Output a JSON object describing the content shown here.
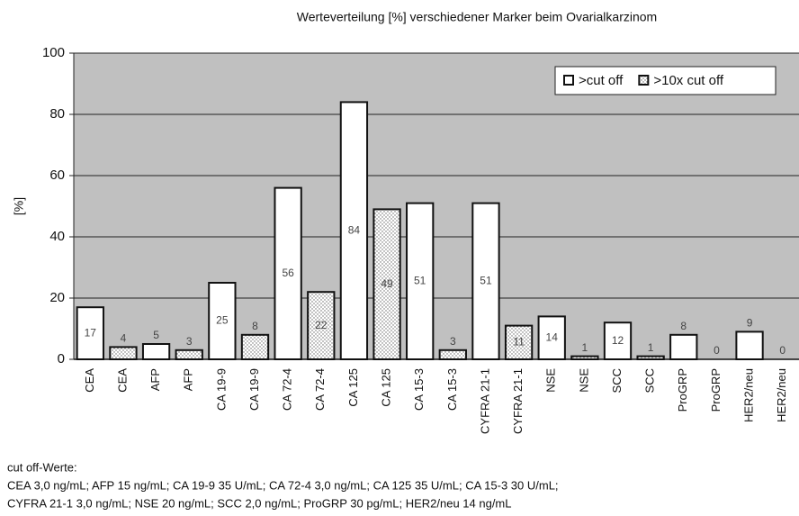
{
  "chart_data": {
    "type": "bar",
    "title": "Werteverteilung [%] verschiedener Marker beim Ovarialkarzinom",
    "ylabel": "[%]",
    "categories": [
      "CEA",
      "CEA",
      "AFP",
      "AFP",
      "CA 19-9",
      "CA 19-9",
      "CA 72-4",
      "CA 72-4",
      "CA 125",
      "CA 125",
      "CA 15-3",
      "CA 15-3",
      "CYFRA 21-1",
      "CYFRA 21-1",
      "NSE",
      "NSE",
      "SCC",
      "SCC",
      "ProGRP",
      "ProGRP",
      "HER2/neu",
      "HER2/neu"
    ],
    "series": [
      {
        "name": ">cut off",
        "color": "#ffffff",
        "values": [
          17,
          null,
          5,
          null,
          25,
          null,
          56,
          null,
          84,
          null,
          51,
          null,
          51,
          null,
          14,
          null,
          12,
          null,
          8,
          null,
          9,
          null
        ]
      },
      {
        "name": ">10x cut off",
        "color": "#ffffff",
        "pattern": "dots",
        "values": [
          null,
          4,
          null,
          3,
          null,
          8,
          null,
          22,
          null,
          49,
          null,
          3,
          null,
          11,
          null,
          1,
          null,
          1,
          null,
          0,
          null,
          0
        ]
      }
    ],
    "ylim": [
      0,
      100
    ],
    "yticks": [
      0,
      20,
      40,
      60,
      80,
      100
    ],
    "grid": true,
    "legend": "top-right",
    "notes": [
      "cut off-Werte:",
      "CEA  3,0 ng/mL; AFP 15 ng/mL; CA 19-9  35 U/mL; CA 72-4  3,0 ng/mL; CA 125  35 U/mL; CA 15-3  30 U/mL;",
      "CYFRA 21-1  3,0 ng/mL; NSE 20 ng/mL; SCC 2,0 ng/mL; ProGRP 30 pg/mL; HER2/neu 14 ng/mL"
    ]
  }
}
